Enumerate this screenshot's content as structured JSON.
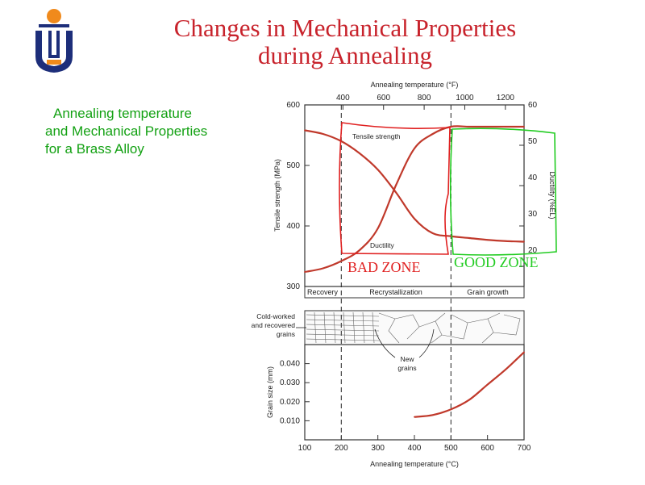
{
  "slide": {
    "title_line1": "Changes in Mechanical Properties",
    "title_line2": "during Annealing",
    "side_line1": "Annealing temperature",
    "side_line2": "and Mechanical Properties",
    "side_line3": "for a Brass Alloy",
    "accent_color": "#c8232c",
    "side_text_color": "#13a113"
  },
  "chart_data": [
    {
      "type": "line",
      "top_axis_label": "Annealing temperature (°F)",
      "top_ticks": [
        400,
        600,
        800,
        1000,
        1200
      ],
      "ylabel": "Tensile strength (MPa)",
      "ylim": [
        300,
        600
      ],
      "yticks": [
        300,
        400,
        500,
        600
      ],
      "y2label": "Ductility (%EL)",
      "y2lim": [
        10,
        60
      ],
      "y2ticks": [
        20,
        30,
        40,
        50,
        60
      ],
      "xlim": [
        100,
        700
      ],
      "series": [
        {
          "name": "Tensile strength",
          "axis": "left",
          "x": [
            100,
            150,
            200,
            250,
            300,
            350,
            400,
            450,
            500,
            550,
            600,
            650,
            700
          ],
          "y": [
            558,
            552,
            540,
            520,
            493,
            455,
            412,
            388,
            383,
            380,
            377,
            375,
            374
          ]
        },
        {
          "name": "Ductility",
          "axis": "right",
          "x": [
            100,
            150,
            200,
            250,
            300,
            350,
            400,
            450,
            500,
            550,
            600,
            650,
            700
          ],
          "y": [
            14,
            15,
            17,
            20,
            26,
            38,
            48,
            52,
            54,
            54,
            54,
            54,
            54
          ]
        }
      ],
      "regions": [
        "Recovery",
        "Recrystallization",
        "Grain growth"
      ],
      "region_bounds": [
        200,
        500
      ],
      "annotations": [
        "BAD  ZONE",
        "GOOD ZONE"
      ],
      "annotation_colors": [
        "#e02020",
        "#22cc22"
      ]
    },
    {
      "type": "line",
      "micro_labels": [
        "Cold-worked",
        "and recovered",
        "grains"
      ],
      "new_grains_label": [
        "New",
        "grains"
      ],
      "ylabel": "Grain size (mm)",
      "ylim": [
        0,
        0.05
      ],
      "yticks": [
        "0.010",
        "0.020",
        "0.030",
        "0.040"
      ],
      "yticks_values": [
        0.01,
        0.02,
        0.03,
        0.04
      ],
      "xlabel": "Annealing temperature (°C)",
      "xlim": [
        100,
        700
      ],
      "xticks": [
        100,
        200,
        300,
        400,
        500,
        600,
        700
      ],
      "series": [
        {
          "name": "Grain size",
          "x": [
            400,
            450,
            500,
            550,
            600,
            650,
            700
          ],
          "y": [
            0.012,
            0.013,
            0.016,
            0.021,
            0.029,
            0.037,
            0.046
          ]
        }
      ]
    }
  ]
}
